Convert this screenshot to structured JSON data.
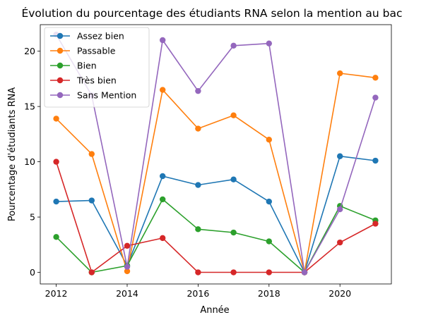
{
  "chart_data": {
    "type": "line",
    "title": "Évolution du pourcentage des étudiants RNA selon la mention au bac",
    "xlabel": "Année",
    "ylabel": "Pourcentage d'étudiants RNA",
    "x": [
      2012,
      2013,
      2014,
      2015,
      2016,
      2017,
      2018,
      2019,
      2020,
      2021
    ],
    "xlim": [
      2011.55,
      2021.45
    ],
    "ylim": [
      -1.05,
      22.4
    ],
    "xticks": [
      2012,
      2014,
      2016,
      2018,
      2020
    ],
    "yticks": [
      0,
      5,
      10,
      15,
      20
    ],
    "grid": false,
    "legend_position": "top-left",
    "marker": "circle",
    "series": [
      {
        "name": "Assez bien",
        "color": "#1f77b4",
        "values": [
          6.4,
          6.5,
          0.6,
          8.7,
          7.9,
          8.4,
          6.4,
          0.0,
          10.5,
          10.1
        ]
      },
      {
        "name": "Passable",
        "color": "#ff7f0e",
        "values": [
          13.9,
          10.7,
          0.1,
          16.5,
          13.0,
          14.2,
          12.0,
          0.0,
          18.0,
          17.6
        ]
      },
      {
        "name": "Bien",
        "color": "#2ca02c",
        "values": [
          3.2,
          0.0,
          0.6,
          6.6,
          3.9,
          3.6,
          2.8,
          0.0,
          6.0,
          4.7
        ]
      },
      {
        "name": "Très bien",
        "color": "#d62728",
        "values": [
          10.0,
          0.0,
          2.4,
          3.1,
          0.0,
          0.0,
          0.0,
          0.0,
          2.7,
          4.4
        ]
      },
      {
        "name": "Sans Mention",
        "color": "#9467bd",
        "values": [
          21.5,
          16.0,
          0.5,
          21.0,
          16.4,
          20.5,
          20.7,
          0.0,
          5.7,
          15.8
        ]
      }
    ]
  }
}
